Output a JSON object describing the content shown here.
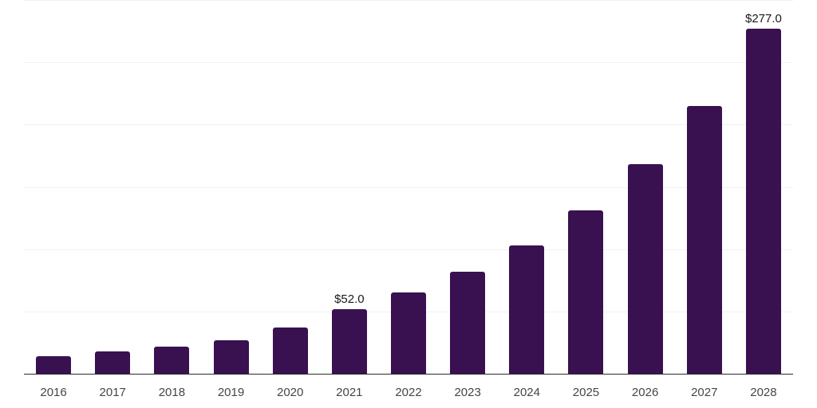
{
  "chart_data": {
    "type": "bar",
    "title": "",
    "xlabel": "",
    "ylabel": "",
    "categories": [
      "2016",
      "2017",
      "2018",
      "2019",
      "2020",
      "2021",
      "2022",
      "2023",
      "2024",
      "2025",
      "2026",
      "2027",
      "2028"
    ],
    "values": [
      14,
      18,
      22,
      27,
      37,
      52,
      65,
      82,
      103,
      131,
      168,
      215,
      277
    ],
    "labeled_points": [
      {
        "category": "2021",
        "label": "$52.0"
      },
      {
        "category": "2028",
        "label": "$277.0"
      }
    ],
    "ylim": [
      0,
      300
    ],
    "gridline_interval": 50,
    "grid": "horizontal",
    "legend": "none",
    "y_axis_tick_labels_visible": false,
    "bar_color": "#391150",
    "axis_line_color": "#2b2b2b",
    "gridline_color": "#f0f0f1",
    "tick_label_color": "#454545",
    "value_label_color": "#1a1a1a"
  }
}
